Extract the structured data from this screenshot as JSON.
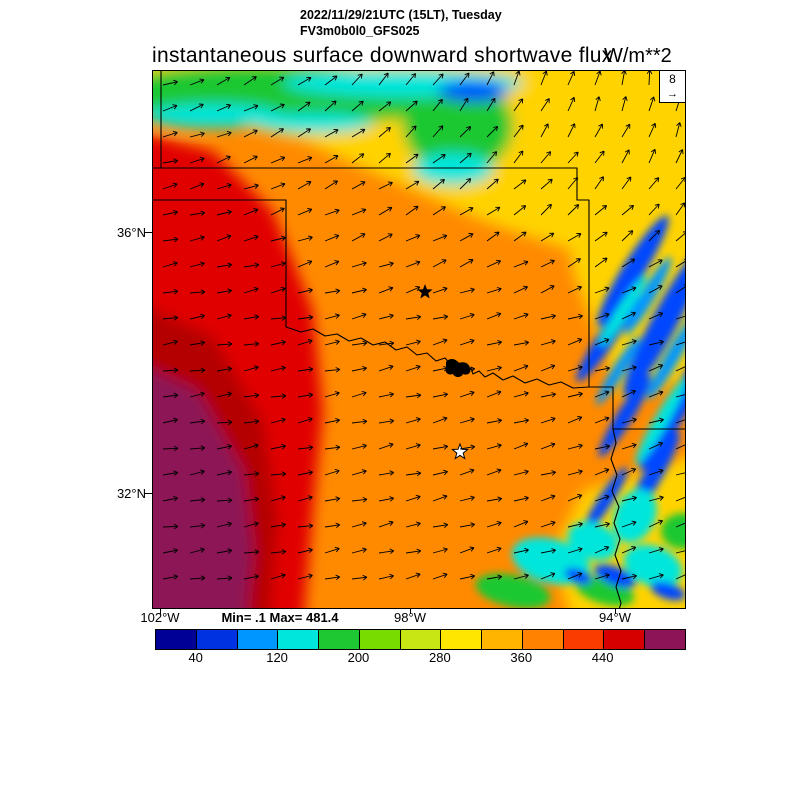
{
  "header": {
    "time_line": "2022/11/29/21UTC (15LT), Tuesday",
    "model_line": "FV3m0b0l0_GFS025",
    "title": "instantaneous surface downward shortwave flux",
    "units": "W/m**2"
  },
  "map": {
    "lat_labels": [
      "36°N",
      "32°N"
    ],
    "lon_labels": [
      "102°W",
      "98°W",
      "94°W"
    ],
    "ref_vector": "8",
    "stats": "Min= .1 Max= 481.4"
  },
  "colorbar": {
    "colors": [
      "#000096",
      "#0032e1",
      "#0096ff",
      "#00e6dc",
      "#1ec832",
      "#78dc00",
      "#c8e614",
      "#ffe600",
      "#ffb400",
      "#ff8200",
      "#fa3c00",
      "#d70000",
      "#8c1457"
    ],
    "tick_labels": [
      "40",
      "120",
      "200",
      "280",
      "360",
      "440"
    ],
    "tick_boundaries": [
      1,
      3,
      5,
      7,
      9,
      11
    ],
    "segments": 13
  },
  "chart_data": {
    "type": "heatmap",
    "title": "instantaneous surface downward shortwave flux",
    "units": "W/m**2",
    "valid_time": "2022/11/29/21UTC (15LT), Tuesday",
    "model": "FV3m0b0l0_GFS025",
    "min": 0.1,
    "max": 481.4,
    "levels": [
      0,
      40,
      80,
      120,
      160,
      200,
      240,
      280,
      320,
      360,
      400,
      440,
      480,
      520
    ],
    "palette": [
      "#000096",
      "#0032e1",
      "#0096ff",
      "#00e6dc",
      "#1ec832",
      "#78dc00",
      "#c8e614",
      "#ffe600",
      "#ffb400",
      "#ff8200",
      "#fa3c00",
      "#d70000",
      "#8c1457"
    ],
    "lat_ticks_deg_n": [
      36,
      32
    ],
    "lon_ticks_deg_w": [
      102,
      98,
      94
    ],
    "overlay_vectors": {
      "type": "wind arrows",
      "reference_value": 8
    },
    "geography": "Oklahoma / north Texas region with state borders, Red River and lake outline",
    "field_pattern": [
      {
        "region": "southwest corner",
        "flux_range": "440-481 (dark red / maroon-purple maximum)"
      },
      {
        "region": "west band",
        "flux_range": "400-440 (red)"
      },
      {
        "region": "central Oklahoma / north Texas",
        "flux_range": "320-400 (orange)"
      },
      {
        "region": "north and northeast",
        "flux_range": "240-320 (yellow)"
      },
      {
        "region": "far north strip along top edge",
        "flux_range": "80-200 (green / cyan cloud shading)"
      },
      {
        "region": "east and southeast diagonal streaks",
        "flux_range": "40-200 (blue / cyan cloud bands)"
      }
    ],
    "markers": [
      {
        "type": "filled-star"
      },
      {
        "type": "open-star"
      }
    ]
  }
}
